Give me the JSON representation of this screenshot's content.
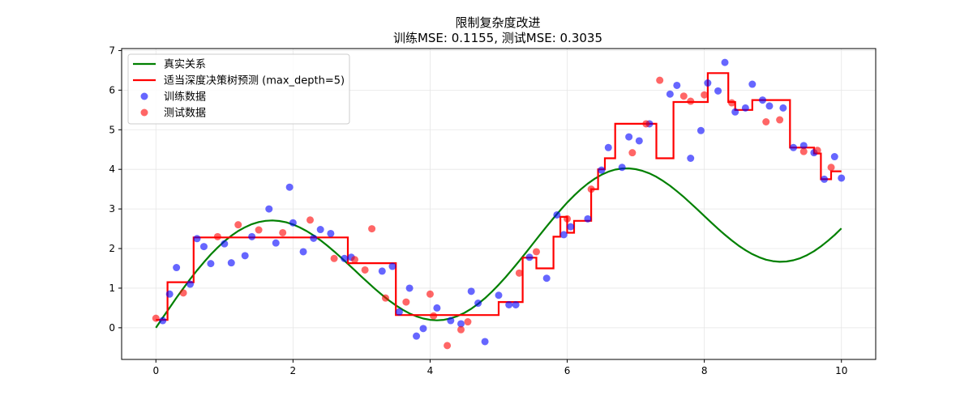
{
  "chart_data": {
    "type": "scatter",
    "title": "限制复杂度改进",
    "subtitle": "训练MSE: 0.1155, 测试MSE: 0.3035",
    "xlabel": "",
    "ylabel": "",
    "xlim": [
      -0.5,
      10.5
    ],
    "ylim": [
      -0.8,
      7.05
    ],
    "xticks": [
      0,
      2,
      4,
      6,
      8,
      10
    ],
    "yticks": [
      0,
      1,
      2,
      3,
      4,
      5,
      6,
      7
    ],
    "grid": true,
    "legend_position": "top-left",
    "series": [
      {
        "name": "真实关系",
        "kind": "line",
        "color": "#008000",
        "function": "3*sin(0.75*x) + 0.3*x",
        "x": [
          0,
          0.1,
          0.2,
          0.3,
          0.4,
          0.5,
          0.6,
          0.7,
          0.8,
          0.9,
          1.0,
          1.1,
          1.2,
          1.3,
          1.4,
          1.5,
          1.6,
          1.7,
          1.8,
          1.9,
          2.0,
          2.1,
          2.2,
          2.3,
          2.4,
          2.5,
          2.6,
          2.7,
          2.8,
          2.9,
          3.0,
          3.1,
          3.2,
          3.3,
          3.4,
          3.5,
          3.6,
          3.7,
          3.8,
          3.9,
          4.0,
          4.1,
          4.2,
          4.3,
          4.4,
          4.5,
          4.6,
          4.7,
          4.8,
          4.9,
          5.0,
          5.1,
          5.2,
          5.3,
          5.4,
          5.5,
          5.6,
          5.7,
          5.8,
          5.9,
          6.0,
          6.1,
          6.2,
          6.3,
          6.4,
          6.5,
          6.6,
          6.7,
          6.8,
          6.9,
          7.0,
          7.1,
          7.2,
          7.3,
          7.4,
          7.5,
          7.6,
          7.7,
          7.8,
          7.9,
          8.0,
          8.1,
          8.2,
          8.3,
          8.4,
          8.5,
          8.6,
          8.7,
          8.8,
          8.9,
          9.0,
          9.1,
          9.2,
          9.3,
          9.4,
          9.5,
          9.6,
          9.7,
          9.8,
          9.9,
          10.0
        ],
        "y": [
          0.0,
          0.255,
          0.507,
          0.755,
          0.996,
          1.228,
          1.448,
          1.656,
          1.849,
          2.025,
          2.184,
          2.323,
          2.442,
          2.539,
          2.615,
          2.669,
          2.7,
          2.709,
          2.696,
          2.662,
          2.607,
          2.533,
          2.441,
          2.332,
          2.209,
          2.074,
          1.928,
          1.774,
          1.614,
          1.452,
          1.29,
          1.13,
          0.975,
          0.827,
          0.69,
          0.565,
          0.455,
          0.362,
          0.287,
          0.232,
          0.199,
          0.188,
          0.2,
          0.236,
          0.295,
          0.376,
          0.479,
          0.603,
          0.746,
          0.907,
          1.084,
          1.275,
          1.477,
          1.687,
          1.903,
          2.123,
          2.342,
          2.558,
          2.768,
          2.97,
          3.161,
          3.338,
          3.499,
          3.641,
          3.763,
          3.863,
          3.94,
          3.993,
          4.021,
          4.025,
          4.005,
          3.962,
          3.897,
          3.811,
          3.706,
          3.585,
          3.449,
          3.302,
          3.146,
          2.985,
          2.822,
          2.659,
          2.5,
          2.348,
          2.205,
          2.074,
          1.958,
          1.859,
          1.779,
          1.719,
          1.681,
          1.665,
          1.673,
          1.704,
          1.758,
          1.835,
          1.934,
          2.053,
          2.19,
          2.343,
          2.51
        ]
      },
      {
        "name": "适当深度决策树预测 (max_depth=5)",
        "kind": "step",
        "color": "#ff0000",
        "x": [
          0.0,
          0.17,
          0.17,
          0.55,
          0.55,
          2.8,
          2.8,
          3.5,
          3.5,
          5.0,
          5.0,
          5.35,
          5.35,
          5.55,
          5.55,
          5.8,
          5.8,
          5.9,
          5.9,
          6.0,
          6.0,
          6.1,
          6.1,
          6.35,
          6.35,
          6.45,
          6.45,
          6.55,
          6.55,
          6.7,
          6.7,
          7.3,
          7.3,
          7.55,
          7.55,
          8.05,
          8.05,
          8.35,
          8.35,
          8.45,
          8.45,
          8.7,
          8.7,
          9.25,
          9.25,
          9.6,
          9.6,
          9.7,
          9.7,
          9.85,
          9.85,
          10.0
        ],
        "y": [
          0.2,
          0.2,
          1.15,
          1.15,
          2.28,
          2.28,
          1.63,
          1.63,
          0.32,
          0.32,
          0.65,
          0.65,
          1.77,
          1.77,
          1.5,
          1.5,
          2.3,
          2.3,
          2.8,
          2.8,
          2.4,
          2.4,
          2.7,
          2.7,
          3.5,
          3.5,
          4.0,
          4.0,
          4.28,
          4.28,
          5.15,
          5.15,
          4.28,
          4.28,
          5.7,
          5.7,
          6.43,
          6.43,
          5.7,
          5.7,
          5.5,
          5.5,
          5.75,
          5.75,
          4.55,
          4.55,
          4.4,
          4.4,
          3.75,
          3.75,
          3.95,
          3.95
        ]
      },
      {
        "name": "训练数据",
        "kind": "scatter",
        "color": "#0000ff",
        "x": [
          0.1,
          0.2,
          0.3,
          0.5,
          0.6,
          0.7,
          0.8,
          1.0,
          1.1,
          1.3,
          1.4,
          1.65,
          1.75,
          1.95,
          2.0,
          2.15,
          2.3,
          2.4,
          2.55,
          2.75,
          2.85,
          3.3,
          3.45,
          3.55,
          3.7,
          3.8,
          3.9,
          4.1,
          4.3,
          4.45,
          4.6,
          4.7,
          4.8,
          5.0,
          5.15,
          5.25,
          5.45,
          5.7,
          5.85,
          5.95,
          6.05,
          6.3,
          6.5,
          6.6,
          6.8,
          6.9,
          7.05,
          7.2,
          7.5,
          7.6,
          7.8,
          7.95,
          8.05,
          8.2,
          8.3,
          8.45,
          8.6,
          8.7,
          8.85,
          8.95,
          9.15,
          9.3,
          9.45,
          9.6,
          9.75,
          9.9,
          10.0
        ],
        "y": [
          0.18,
          0.85,
          1.52,
          1.1,
          2.25,
          2.05,
          1.62,
          2.12,
          1.64,
          1.82,
          2.3,
          3.0,
          2.14,
          3.55,
          2.65,
          1.92,
          2.26,
          2.48,
          2.38,
          1.75,
          1.78,
          1.43,
          1.55,
          0.4,
          1.0,
          -0.21,
          -0.02,
          0.5,
          0.18,
          0.1,
          0.92,
          0.62,
          -0.35,
          0.82,
          0.58,
          0.58,
          1.78,
          1.25,
          2.85,
          2.35,
          2.55,
          2.75,
          3.98,
          4.55,
          4.05,
          4.82,
          4.72,
          5.15,
          5.9,
          6.12,
          4.28,
          4.98,
          6.18,
          5.98,
          6.7,
          5.45,
          5.55,
          6.15,
          5.75,
          5.6,
          5.55,
          4.55,
          4.6,
          4.42,
          3.75,
          4.32,
          3.78
        ]
      },
      {
        "name": "测试数据",
        "kind": "scatter",
        "color": "#ff0000",
        "x": [
          0.0,
          0.4,
          0.9,
          1.2,
          1.5,
          1.85,
          2.25,
          2.6,
          2.9,
          3.05,
          3.15,
          3.35,
          3.65,
          4.0,
          4.05,
          4.25,
          4.45,
          4.55,
          5.3,
          5.55,
          6.0,
          6.35,
          6.95,
          7.15,
          7.35,
          7.7,
          7.8,
          8.0,
          8.4,
          8.9,
          9.1,
          9.45,
          9.65,
          9.85
        ],
        "y": [
          0.24,
          0.88,
          2.3,
          2.6,
          2.47,
          2.4,
          2.72,
          1.75,
          1.72,
          1.46,
          2.5,
          0.75,
          0.65,
          0.85,
          0.3,
          -0.45,
          -0.05,
          0.15,
          1.38,
          1.92,
          2.75,
          3.5,
          4.42,
          5.15,
          6.25,
          5.85,
          5.72,
          5.88,
          5.68,
          5.2,
          5.25,
          4.45,
          4.48,
          4.05
        ]
      }
    ]
  }
}
